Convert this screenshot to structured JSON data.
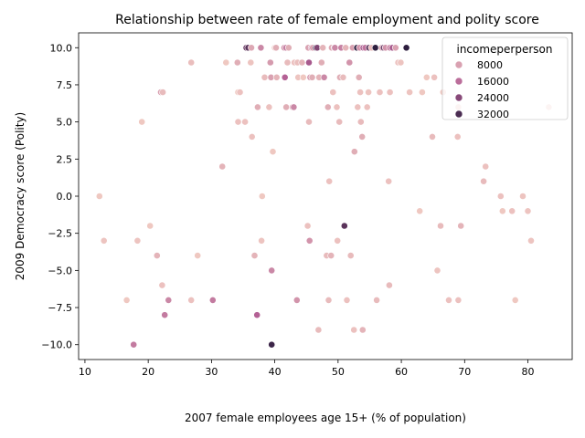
{
  "chart_data": {
    "type": "scatter",
    "title": "Relationship between rate of female employment and polity score",
    "xlabel": "2007 female employees age 15+ (% of population)",
    "ylabel": "2009 Democracy score (Polity)",
    "xlim": [
      9,
      87
    ],
    "ylim": [
      -11,
      11
    ],
    "xticks": [
      "10",
      "20",
      "30",
      "40",
      "50",
      "60",
      "70",
      "80"
    ],
    "yticks": [
      "−10.0",
      "−7.5",
      "−5.0",
      "−2.5",
      "0.0",
      "2.5",
      "5.0",
      "7.5",
      "10.0"
    ],
    "grid": false,
    "legend": {
      "title": "incomeperperson",
      "placement": "top-right",
      "entries": [
        "8000",
        "16000",
        "24000",
        "32000"
      ],
      "entry_values": [
        8000,
        16000,
        24000,
        32000
      ]
    },
    "hue_range": [
      1000,
      36000
    ],
    "color_low": "#f3cec4",
    "color_high": "#2d1e3e",
    "points": [
      [
        12.3,
        0,
        2000
      ],
      [
        13,
        -3,
        2500
      ],
      [
        16.6,
        -7,
        2000
      ],
      [
        18.3,
        -3,
        2500
      ],
      [
        17.7,
        -10,
        14000
      ],
      [
        19,
        5,
        2000
      ],
      [
        20.3,
        -2,
        2000
      ],
      [
        21.4,
        -4,
        5000
      ],
      [
        22,
        7,
        8000
      ],
      [
        22.3,
        7,
        4000
      ],
      [
        22.2,
        -6,
        3000
      ],
      [
        22.6,
        -8,
        14000
      ],
      [
        23.2,
        -7,
        12000
      ],
      [
        26.8,
        9,
        3500
      ],
      [
        26.8,
        -7,
        3000
      ],
      [
        27.8,
        -4,
        2000
      ],
      [
        30.2,
        -7,
        14000
      ],
      [
        31.7,
        2,
        5000
      ],
      [
        32.3,
        9,
        2000
      ],
      [
        34.1,
        9,
        6000
      ],
      [
        34.2,
        7,
        2000
      ],
      [
        34.5,
        7,
        3000
      ],
      [
        34.2,
        5,
        3000
      ],
      [
        35.3,
        5,
        3000
      ],
      [
        35.5,
        10,
        28000
      ],
      [
        35.8,
        10,
        30000
      ],
      [
        36.2,
        9,
        2500
      ],
      [
        36.3,
        10,
        7000
      ],
      [
        36.4,
        4,
        3000
      ],
      [
        36.8,
        -4,
        5000
      ],
      [
        37.3,
        6,
        6000
      ],
      [
        37.2,
        -8,
        18000
      ],
      [
        37.8,
        10,
        12000
      ],
      [
        38,
        0,
        2000
      ],
      [
        37.9,
        -3,
        2500
      ],
      [
        38.4,
        8,
        4000
      ],
      [
        39.1,
        6,
        3000
      ],
      [
        39.3,
        9,
        9000
      ],
      [
        39.4,
        8,
        8000
      ],
      [
        39.5,
        -5,
        12000
      ],
      [
        39.5,
        -10,
        34000
      ],
      [
        39.7,
        3,
        2000
      ],
      [
        40,
        10,
        2500
      ],
      [
        40.3,
        8,
        5000
      ],
      [
        40.2,
        10,
        6000
      ],
      [
        41.5,
        10,
        10000
      ],
      [
        41.6,
        8,
        18000
      ],
      [
        41.8,
        6,
        6000
      ],
      [
        41.8,
        10,
        14000
      ],
      [
        42,
        9,
        4000
      ],
      [
        42.2,
        10,
        6000
      ],
      [
        42.8,
        6,
        7000
      ],
      [
        43,
        6,
        12000
      ],
      [
        43.1,
        9,
        3000
      ],
      [
        43.5,
        -7,
        10000
      ],
      [
        43.6,
        9,
        3500
      ],
      [
        43.7,
        8,
        2500
      ],
      [
        44.3,
        9,
        5000
      ],
      [
        44.5,
        8,
        2000
      ],
      [
        45.2,
        -2,
        3000
      ],
      [
        45.3,
        10,
        8000
      ],
      [
        45.4,
        5,
        4000
      ],
      [
        45.4,
        9,
        20000
      ],
      [
        45.5,
        -3,
        10000
      ],
      [
        45.6,
        8,
        10000
      ],
      [
        45.8,
        10,
        12000
      ],
      [
        45.9,
        8,
        6000
      ],
      [
        46,
        10,
        8000
      ],
      [
        46.5,
        10,
        34000
      ],
      [
        46.7,
        10,
        25000
      ],
      [
        46.9,
        -9,
        4000
      ],
      [
        47,
        8,
        5000
      ],
      [
        47.4,
        9,
        6000
      ],
      [
        47.6,
        10,
        5000
      ],
      [
        47.8,
        8,
        12000
      ],
      [
        48.2,
        -4,
        4000
      ],
      [
        48.4,
        6,
        6000
      ],
      [
        48.5,
        -7,
        4000
      ],
      [
        48.6,
        1,
        3000
      ],
      [
        48.9,
        -4,
        5000
      ],
      [
        49,
        10,
        7000
      ],
      [
        49.2,
        7,
        3000
      ],
      [
        49.4,
        10,
        15000
      ],
      [
        49.5,
        10,
        12000
      ],
      [
        49.8,
        6,
        3000
      ],
      [
        49.9,
        -3,
        3000
      ],
      [
        50.2,
        5,
        4000
      ],
      [
        50.3,
        8,
        6000
      ],
      [
        50.5,
        10,
        13000
      ],
      [
        50.8,
        8,
        4000
      ],
      [
        51,
        -2,
        30000
      ],
      [
        51.2,
        10,
        5000
      ],
      [
        51.4,
        -7,
        3000
      ],
      [
        51.8,
        9,
        10000
      ],
      [
        52,
        -4,
        4000
      ],
      [
        52.3,
        10,
        8000
      ],
      [
        52.5,
        -9,
        3000
      ],
      [
        52.6,
        3,
        6000
      ],
      [
        53,
        10,
        38000
      ],
      [
        53.1,
        6,
        3000
      ],
      [
        53.3,
        8,
        6000
      ],
      [
        53.4,
        10,
        10000
      ],
      [
        53.5,
        7,
        3000
      ],
      [
        53.6,
        5,
        4000
      ],
      [
        53.8,
        4,
        6000
      ],
      [
        53.9,
        -9,
        5000
      ],
      [
        54,
        10,
        20000
      ],
      [
        54.3,
        10,
        15000
      ],
      [
        54.6,
        6,
        3000
      ],
      [
        54.8,
        7,
        2500
      ],
      [
        54.9,
        10,
        30000
      ],
      [
        55.3,
        10,
        4000
      ],
      [
        55.9,
        10,
        38000
      ],
      [
        56.1,
        -7,
        4000
      ],
      [
        56.6,
        7,
        3000
      ],
      [
        56.9,
        10,
        8000
      ],
      [
        57.2,
        10,
        28000
      ],
      [
        57.5,
        10,
        10000
      ],
      [
        58,
        1,
        3000
      ],
      [
        58.1,
        -6,
        4000
      ],
      [
        58.2,
        7,
        3000
      ],
      [
        58.2,
        10,
        12000
      ],
      [
        58.6,
        10,
        20000
      ],
      [
        59.1,
        10,
        8000
      ],
      [
        59.5,
        9,
        3000
      ],
      [
        59.9,
        9,
        2500
      ],
      [
        60.8,
        10,
        38000
      ],
      [
        61.3,
        7,
        2500
      ],
      [
        62.9,
        -1,
        2000
      ],
      [
        63.3,
        7,
        2000
      ],
      [
        64,
        8,
        2000
      ],
      [
        64.9,
        4,
        4000
      ],
      [
        65.2,
        8,
        3000
      ],
      [
        65.7,
        -5,
        2500
      ],
      [
        66.2,
        -2,
        4000
      ],
      [
        66.6,
        7,
        2000
      ],
      [
        67.5,
        -7,
        3000
      ],
      [
        68.9,
        4,
        3000
      ],
      [
        69,
        6,
        2000
      ],
      [
        69,
        -7,
        3000
      ],
      [
        69.4,
        -2,
        5000
      ],
      [
        73,
        1,
        4000
      ],
      [
        73.3,
        2,
        3000
      ],
      [
        75.7,
        0,
        3000
      ],
      [
        76,
        -1,
        2000
      ],
      [
        77.5,
        -1,
        3000
      ],
      [
        78,
        -7,
        2000
      ],
      [
        79.2,
        0,
        2500
      ],
      [
        80,
        -1,
        2500
      ],
      [
        80.5,
        -3,
        2500
      ],
      [
        83.3,
        6,
        2000
      ]
    ]
  }
}
